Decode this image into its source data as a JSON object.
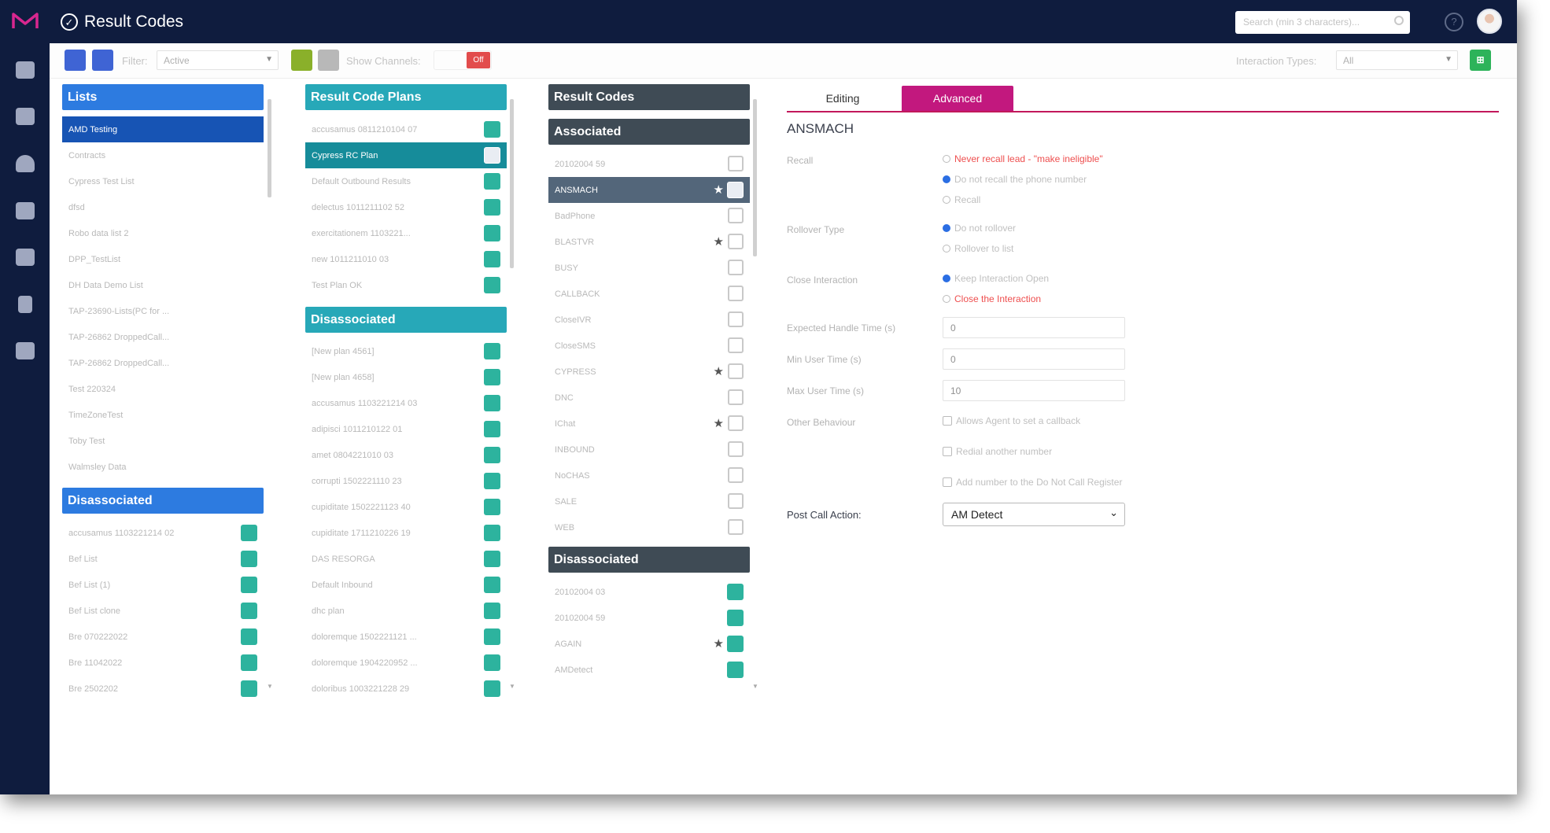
{
  "app": {
    "title": "Result Codes"
  },
  "topbar": {
    "search_placeholder": "Search (min 3 characters)...",
    "help_icon": "question-circle",
    "avatar": "user-photo"
  },
  "toolbar": {
    "filter_label": "Filter:",
    "filter_value": "Active",
    "show_channels_label": "Show Channels:",
    "show_channels_toggle": "Off",
    "interaction_types_label": "Interaction Types:",
    "interaction_types_value": "All"
  },
  "colors": {
    "navy": "#0f1c3e",
    "blue": "#2d7be0",
    "teal": "#27a8b8",
    "dark": "#3f4b55",
    "magenta": "#c2187e",
    "green": "#2db39e"
  },
  "lists_panel": {
    "header": "Lists",
    "items": [
      "AMD Testing",
      "Contracts",
      "Cypress Test List",
      "dfsd",
      "Robo data list 2",
      "DPP_TestList",
      "DH Data Demo List",
      "TAP-23690-Lists(PC for ...",
      "TAP-26862 DroppedCall...",
      "TAP-26862 DroppedCall...",
      "Test 220324",
      "TimeZoneTest",
      "Toby Test",
      "Walmsley Data"
    ],
    "disassociated_header": "Disassociated",
    "disassociated_items": [
      "accusamus 1103221214 02",
      "Bef List",
      "Bef List (1)",
      "Bef List clone",
      "Bre 070222022",
      "Bre 11042022",
      "Bre 2502202"
    ]
  },
  "plans_panel": {
    "header": "Result Code Plans",
    "items": [
      "accusamus 0811210104 07",
      "Cypress RC Plan",
      "Default Outbound Results",
      "delectus 1011211102 52",
      "exercitationem 1103221...",
      "new 1011211010 03",
      "Test Plan OK"
    ],
    "disassociated_header": "Disassociated",
    "disassociated_items": [
      "[New plan 4561]",
      "[New plan 4658]",
      "accusamus 1103221214 03",
      "adipisci 1011210122 01",
      "amet 0804221010 03",
      "corrupti 1502221110 23",
      "cupiditate 1502221123 40",
      "cupiditate 1711210226 19",
      "DAS RESORGA",
      "Default Inbound",
      "dhc plan",
      "doloremque 1502221121 ...",
      "doloremque 1904220952 ...",
      "doloribus 1003221228 29"
    ]
  },
  "codes_panel": {
    "header": "Result Codes",
    "associated_header": "Associated",
    "associated_items": [
      "20102004 59",
      "ANSMACH",
      "BadPhone",
      "BLASTVR",
      "BUSY",
      "CALLBACK",
      "CloseIVR",
      "CloseSMS",
      "CYPRESS",
      "DNC",
      "IChat",
      "INBOUND",
      "NoCHAS",
      "SALE",
      "WEB"
    ],
    "disassociated_header": "Disassociated",
    "disassociated_items": [
      "20102004 03",
      "20102004 59",
      "AGAIN",
      "AMDetect"
    ]
  },
  "detail": {
    "tabs": [
      "Editing",
      "Advanced"
    ],
    "active_tab": "Advanced",
    "title": "ANSMACH",
    "recall_label": "Recall",
    "recall_options": [
      "Never recall lead - \"make ineligible\"",
      "Do not recall the phone number",
      "Recall"
    ],
    "rollover_label": "Rollover Type",
    "rollover_options": [
      "Do not rollover",
      "Rollover to list"
    ],
    "close_label": "Close Interaction",
    "close_options": [
      "Keep Interaction Open",
      "Close the Interaction"
    ],
    "expected_label": "Expected Handle Time (s)",
    "expected_value": "0",
    "min_label": "Min User Time (s)",
    "min_value": "0",
    "max_label": "Max User Time (s)",
    "max_value": "10",
    "other_label": "Other Behaviour",
    "other_options": [
      "Allows Agent to set a callback",
      "Redial another number",
      "Add number to the Do Not Call Register"
    ],
    "post_call_label": "Post Call Action:",
    "post_call_value": "AM Detect"
  }
}
